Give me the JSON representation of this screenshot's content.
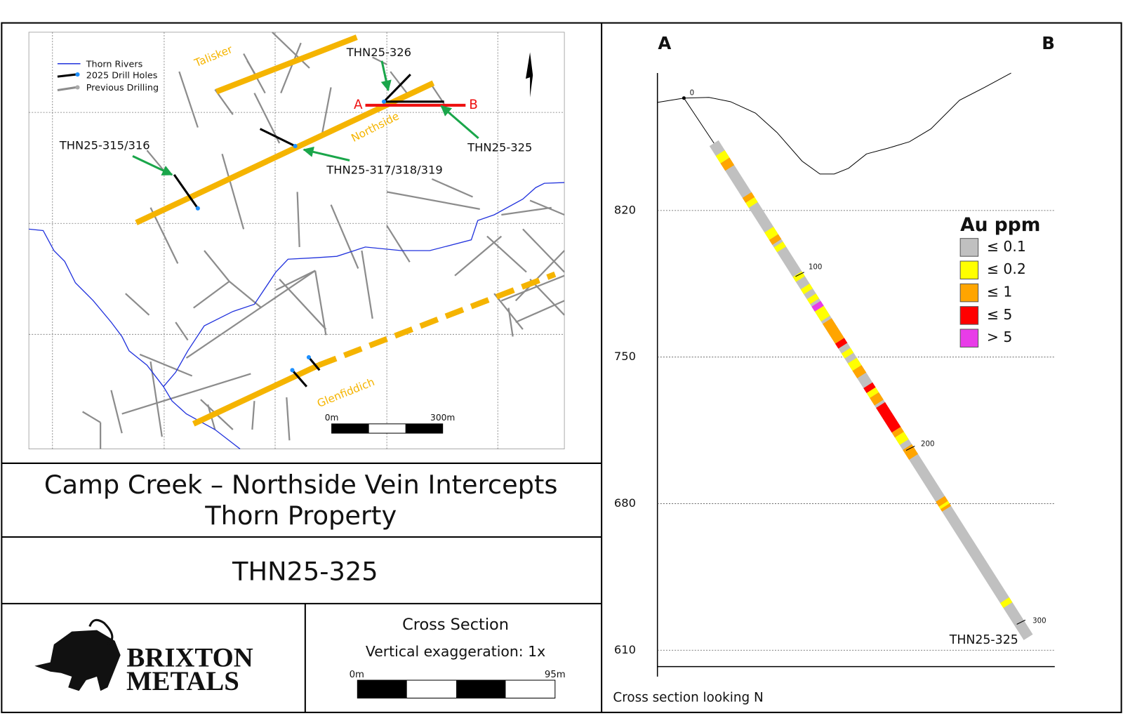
{
  "map": {
    "legend": [
      "Thorn Rivers",
      "2025 Drill Holes",
      "Previous Drilling"
    ],
    "vein_labels": [
      "Talisker",
      "Northside",
      "Glenfiddich"
    ],
    "hole_labels": [
      "THN25-326",
      "THN25-315/316",
      "THN25-317/318/319",
      "THN25-325"
    ],
    "section_ends": [
      "A",
      "B"
    ],
    "scale_bar": [
      "0m",
      "300m"
    ]
  },
  "title_block": {
    "title_lines": [
      "Camp Creek – Northside Vein Intercepts",
      "Thorn Property"
    ],
    "hole": "THN25-325",
    "section_title": "Cross Section",
    "exaggeration": "Vertical exaggeration: 1x",
    "scale_bar": [
      "0m",
      "95m"
    ],
    "logo": [
      "BRIXTON",
      "METALS"
    ]
  },
  "cross_section": {
    "ends": [
      "A",
      "B"
    ],
    "elevation_ticks": [
      820,
      750,
      680,
      610
    ],
    "depth_labels": [
      0,
      100,
      200,
      300
    ],
    "hole_label": "THN25-325",
    "footer": "Cross section looking N",
    "legend": {
      "title": "Au ppm",
      "items": [
        {
          "label": "≤ 0.1",
          "color": "#c0c0c0"
        },
        {
          "label": "≤ 0.2",
          "color": "#ffff00"
        },
        {
          "label": "≤ 1",
          "color": "#ffa500"
        },
        {
          "label": "≤ 5",
          "color": "#ff0000"
        },
        {
          "label": "> 5",
          "color": "#e83ce8"
        }
      ]
    }
  }
}
